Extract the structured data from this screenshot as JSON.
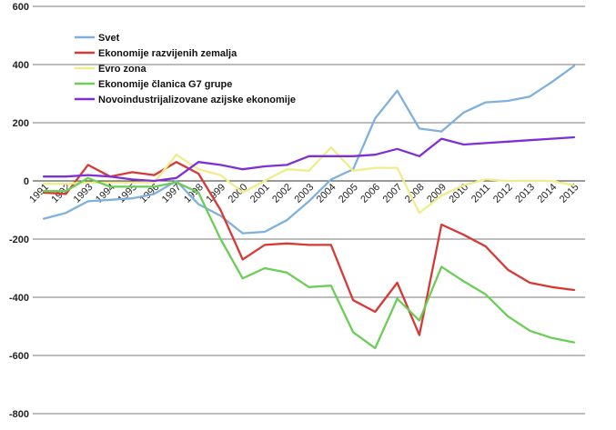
{
  "chart_data": {
    "type": "line",
    "title": "",
    "xlabel": "",
    "ylabel": "",
    "ylim": [
      -800,
      600
    ],
    "yticks": [
      -800,
      -600,
      -400,
      -200,
      0,
      200,
      400,
      600
    ],
    "categories": [
      "1991",
      "1992",
      "1993",
      "1994",
      "1995",
      "1996",
      "1997",
      "1998",
      "1999",
      "2000",
      "2001",
      "2002",
      "2003",
      "2004",
      "2005",
      "2006",
      "2007",
      "2008",
      "2009",
      "2010",
      "2011",
      "2012",
      "2013",
      "2014",
      "2015"
    ],
    "grid": true,
    "legend_position": "top-left",
    "series": [
      {
        "name": "Svet",
        "color": "#7fb0de",
        "values": [
          -130,
          -110,
          -70,
          -65,
          -60,
          -45,
          0,
          -80,
          -120,
          -180,
          -175,
          -135,
          -70,
          5,
          40,
          215,
          310,
          180,
          170,
          235,
          270,
          275,
          290,
          340,
          395
        ]
      },
      {
        "name": "Ekonomije razvijenih zemalja",
        "color": "#d73a36",
        "values": [
          -40,
          -45,
          55,
          15,
          30,
          20,
          65,
          25,
          -100,
          -270,
          -220,
          -215,
          -220,
          -220,
          -410,
          -450,
          -350,
          -530,
          -150,
          -185,
          -225,
          -305,
          -350,
          -365,
          -375
        ]
      },
      {
        "name": "Evro zona",
        "color": "#f0ec8a",
        "values": [
          -10,
          -10,
          -5,
          -5,
          -5,
          -5,
          90,
          40,
          20,
          -40,
          0,
          40,
          35,
          115,
          35,
          45,
          45,
          -110,
          -50,
          -15,
          5,
          0,
          0,
          0,
          -15
        ]
      },
      {
        "name": "Ekonomije članica G7 grupe",
        "color": "#6ccd57",
        "values": [
          -35,
          -35,
          10,
          -20,
          -20,
          -20,
          -5,
          -40,
          -200,
          -335,
          -300,
          -315,
          -365,
          -360,
          -520,
          -575,
          -405,
          -480,
          -295,
          -345,
          -390,
          -465,
          -515,
          -540,
          -555
        ]
      },
      {
        "name": "Novoindustrijalizovane azijske ekonomije",
        "color": "#7f2fd6",
        "values": [
          15,
          15,
          20,
          15,
          5,
          0,
          10,
          65,
          55,
          40,
          50,
          55,
          85,
          85,
          85,
          90,
          110,
          85,
          145,
          125,
          130,
          135,
          140,
          145,
          150
        ]
      }
    ]
  }
}
